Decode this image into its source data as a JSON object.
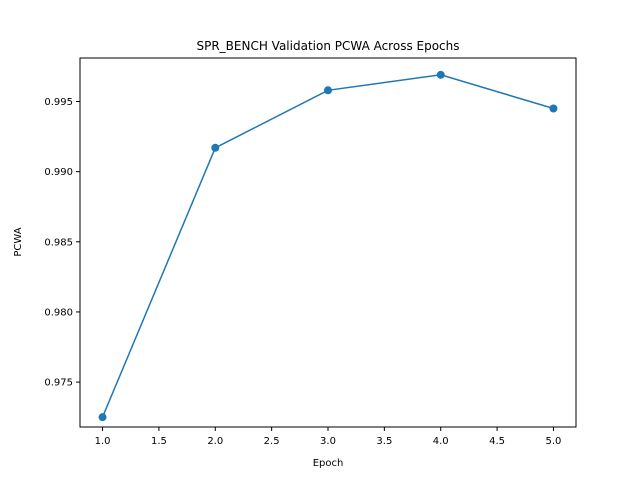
{
  "chart_data": {
    "type": "line",
    "title": "SPR_BENCH Validation PCWA Across Epochs",
    "xlabel": "Epoch",
    "ylabel": "PCWA",
    "xlim": [
      0.8,
      5.2
    ],
    "ylim": [
      0.9718,
      0.9981
    ],
    "xticks": [
      1.0,
      1.5,
      2.0,
      2.5,
      3.0,
      3.5,
      4.0,
      4.5,
      5.0
    ],
    "xtick_labels": [
      "1.0",
      "1.5",
      "2.0",
      "2.5",
      "3.0",
      "3.5",
      "4.0",
      "4.5",
      "5.0"
    ],
    "yticks": [
      0.975,
      0.98,
      0.985,
      0.99,
      0.995
    ],
    "ytick_labels": [
      "0.975",
      "0.980",
      "0.985",
      "0.990",
      "0.995"
    ],
    "grid": false,
    "series": [
      {
        "x": [
          1,
          2,
          3,
          4,
          5
        ],
        "values": [
          0.9725,
          0.9917,
          0.9958,
          0.9969,
          0.9945
        ],
        "color": "#1f77b4",
        "marker": "circle"
      }
    ]
  }
}
